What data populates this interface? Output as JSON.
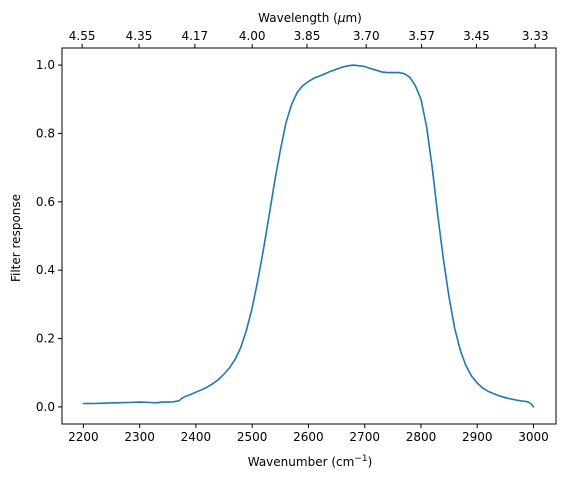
{
  "chart_data": {
    "type": "line",
    "title": "",
    "xlabel": "Wavenumber (cm",
    "xlabel_sup": "−1",
    "xlabel_suffix": ")",
    "ylabel": "Filter response",
    "x2label": "Wavelength (",
    "x2label_mu": "μ",
    "x2label_suffix": "m)",
    "xlim": [
      2162,
      3040
    ],
    "ylim": [
      -0.05,
      1.05
    ],
    "grid": false,
    "x_ticks": [
      2200,
      2300,
      2400,
      2500,
      2600,
      2700,
      2800,
      2900,
      3000
    ],
    "x_tick_labels": [
      "2200",
      "2300",
      "2400",
      "2500",
      "2600",
      "2700",
      "2800",
      "2900",
      "3000"
    ],
    "y_ticks": [
      0.0,
      0.2,
      0.4,
      0.6,
      0.8,
      1.0
    ],
    "y_tick_labels": [
      "0.0",
      "0.2",
      "0.4",
      "0.6",
      "0.8",
      "1.0"
    ],
    "x2_ticks": [
      2197.8,
      2298.9,
      2398.1,
      2500,
      2597.4,
      2702.7,
      2801.1,
      2898.6,
      3003
    ],
    "x2_tick_labels": [
      "4.55",
      "4.35",
      "4.17",
      "4.00",
      "3.85",
      "3.70",
      "3.57",
      "3.45",
      "3.33"
    ],
    "series": [
      {
        "color": "#1f77b4",
        "x": [
          2200,
          2220,
          2240,
          2260,
          2280,
          2300,
          2320,
          2330,
          2340,
          2350,
          2360,
          2370,
          2375,
          2380,
          2390,
          2400,
          2410,
          2420,
          2430,
          2440,
          2450,
          2460,
          2470,
          2480,
          2490,
          2500,
          2510,
          2520,
          2530,
          2540,
          2550,
          2560,
          2570,
          2580,
          2590,
          2600,
          2610,
          2620,
          2630,
          2640,
          2650,
          2660,
          2670,
          2680,
          2690,
          2700,
          2710,
          2720,
          2730,
          2740,
          2750,
          2760,
          2770,
          2780,
          2790,
          2800,
          2810,
          2820,
          2830,
          2840,
          2850,
          2860,
          2870,
          2880,
          2890,
          2900,
          2910,
          2920,
          2930,
          2940,
          2950,
          2960,
          2970,
          2980,
          2990,
          2995,
          3000
        ],
        "y": [
          0.01,
          0.01,
          0.011,
          0.012,
          0.013,
          0.014,
          0.013,
          0.012,
          0.014,
          0.014,
          0.015,
          0.018,
          0.025,
          0.03,
          0.036,
          0.043,
          0.05,
          0.058,
          0.068,
          0.08,
          0.096,
          0.115,
          0.14,
          0.175,
          0.225,
          0.29,
          0.37,
          0.46,
          0.56,
          0.66,
          0.75,
          0.83,
          0.885,
          0.92,
          0.94,
          0.952,
          0.962,
          0.968,
          0.975,
          0.982,
          0.988,
          0.994,
          0.998,
          1.0,
          0.998,
          0.996,
          0.99,
          0.985,
          0.98,
          0.978,
          0.978,
          0.978,
          0.975,
          0.965,
          0.94,
          0.9,
          0.82,
          0.7,
          0.56,
          0.43,
          0.32,
          0.23,
          0.165,
          0.12,
          0.09,
          0.07,
          0.055,
          0.045,
          0.038,
          0.032,
          0.027,
          0.023,
          0.02,
          0.017,
          0.015,
          0.01,
          0.0
        ]
      }
    ]
  }
}
